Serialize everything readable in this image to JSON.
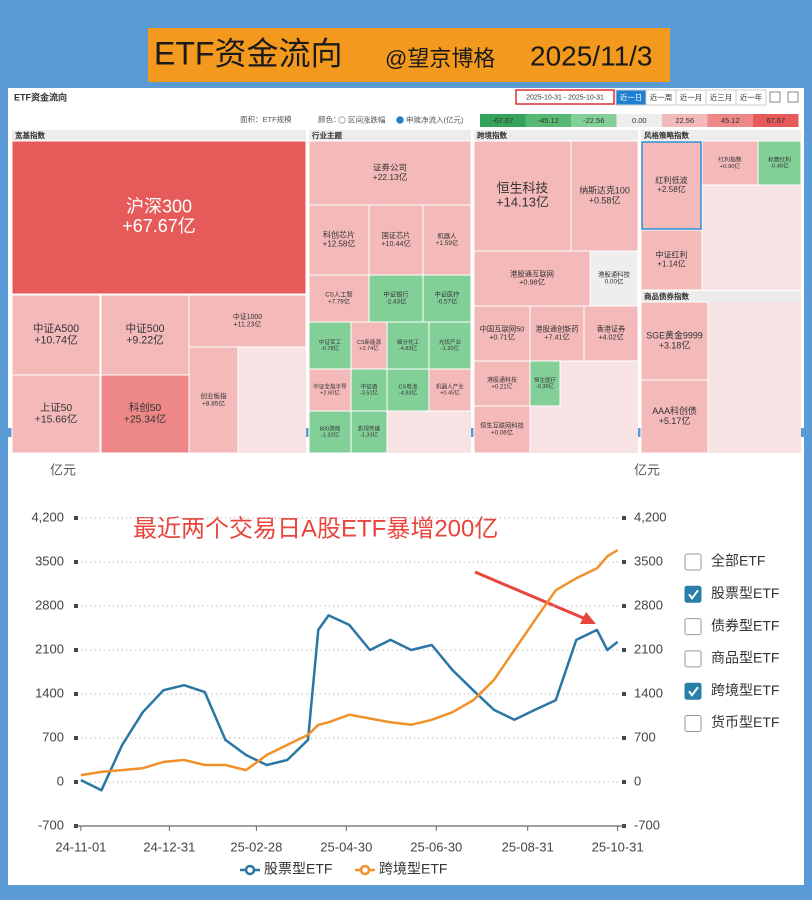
{
  "banner": {
    "title": "ETF资金流向",
    "author": "@望京博格",
    "date": "2025/11/3"
  },
  "chart_data": [
    {
      "type": "treemap",
      "title": "ETF资金流向",
      "date_range": "2025-10-31 - 2025-10-31",
      "periods": [
        {
          "label": "近一日",
          "active": true
        },
        {
          "label": "近一周",
          "active": false
        },
        {
          "label": "近一月",
          "active": false
        },
        {
          "label": "近三月",
          "active": false
        },
        {
          "label": "近一年",
          "active": false
        }
      ],
      "area_label": "面积：ETF规模",
      "color_label": "颜色：",
      "color_options": [
        {
          "label": "区间涨跌幅",
          "selected": false
        },
        {
          "label": "申赎净流入(亿元)",
          "selected": true
        }
      ],
      "color_scale": [
        -67.67,
        -45.12,
        -22.56,
        {
          "value": 0,
          "label": "0.00"
        },
        22.56,
        45.12,
        67.67
      ],
      "color_scale_colors": [
        "#35a35a",
        "#57b872",
        "#82d098",
        "#eeeeee",
        "#f4b9b9",
        "#ee8787",
        "#e65a5a"
      ],
      "groups": [
        {
          "name": "宽基指数",
          "categories": [
            "沪深300",
            "中证A500",
            "中证500",
            "中证1000",
            "上证50",
            "科创50",
            "创业板指"
          ],
          "values": [
            67.67,
            10.74,
            9.22,
            11.23,
            15.66,
            25.34,
            8.85
          ],
          "value_labels": [
            "+67.67亿",
            "+10.74亿",
            "+9.22亿",
            "+11.23亿",
            "+15.66亿",
            "+25.34亿",
            "+8.85亿"
          ]
        },
        {
          "name": "行业主题",
          "categories": [
            "证券公司",
            "科创芯片",
            "国证芯片",
            "机器人",
            "CS人工智",
            "中证银行",
            "中证医疗",
            "中证军工",
            "CS新能源",
            "细分化工",
            "光伏产业",
            "中证全指半导",
            "中证酒",
            "CS电池",
            "机器人产业",
            "800游戏",
            "影视传媒"
          ],
          "values": [
            22.13,
            12.58,
            10.44,
            1.59,
            7.79,
            -2.43,
            -0.57,
            -0.78,
            3.74,
            -4.83,
            -1.2,
            2.6,
            -3.51,
            -4.83,
            0.45,
            -1.32,
            -1.33
          ],
          "value_labels": [
            "+22.13亿",
            "+12.58亿",
            "+10.44亿",
            "+1.59亿",
            "+7.79亿",
            "-2.43亿",
            "-0.57亿",
            "-0.78亿",
            "+3.74亿",
            "-4.83亿",
            "-1.20亿",
            "+2.60亿",
            "-3.51亿",
            "-4.83亿",
            "+0.45亿",
            "-1.32亿",
            "-1.33亿"
          ]
        },
        {
          "name": "跨境指数",
          "categories": [
            "恒生科技",
            "纳斯达克100",
            "港股通互联网",
            "港股通科技",
            "中国互联网50",
            "港股通创新药",
            "香港证券",
            "港股通科技",
            "恒生医疗",
            "恒生互联网科技"
          ],
          "values": [
            14.13,
            0.58,
            0.98,
            0,
            0.71,
            7.41,
            4.02,
            0.21,
            -0.36,
            0.06
          ],
          "value_labels": [
            "+14.13亿",
            "+0.58亿",
            "+0.98亿",
            "0.00亿",
            "+0.71亿",
            "+7.41亿",
            "+4.02亿",
            "+0.21亿",
            "-0.36亿",
            "+0.06亿"
          ]
        },
        {
          "name": "风格策略指数",
          "categories": [
            "红利低波",
            "红利指数",
            "标普红利",
            "中证红利"
          ],
          "values": [
            2.58,
            0.9,
            -0.46,
            1.14
          ],
          "value_labels": [
            "+2.58亿",
            "+0.90亿",
            "-0.46亿",
            "+1.14亿"
          ]
        },
        {
          "name": "商品债券指数",
          "categories": [
            "SGE黄金9999",
            "AAA科创债"
          ],
          "values": [
            3.18,
            5.17
          ],
          "value_labels": [
            "+3.18亿",
            "+5.17亿"
          ]
        }
      ]
    },
    {
      "type": "line",
      "annotation": "最近两个交易日A股ETF暴增200亿",
      "y_label": "亿元",
      "y2_label": "亿元",
      "x": [
        "24-11-01",
        "24-11-15",
        "24-11-29",
        "24-12-13",
        "24-12-27",
        "25-01-10",
        "25-01-24",
        "25-02-07",
        "25-02-21",
        "25-03-07",
        "25-03-21",
        "25-04-04",
        "25-04-11",
        "25-04-18",
        "25-05-02",
        "25-05-16",
        "25-05-30",
        "25-06-13",
        "25-06-27",
        "25-07-11",
        "25-07-25",
        "25-08-08",
        "25-08-22",
        "25-09-05",
        "25-09-19",
        "25-10-03",
        "25-10-17",
        "25-10-24",
        "25-10-31"
      ],
      "series": [
        {
          "name": "股票型ETF",
          "color": "#2a77a4",
          "values": [
            30,
            -130,
            590,
            1110,
            1460,
            1540,
            1430,
            670,
            430,
            270,
            350,
            670,
            2420,
            2650,
            2500,
            2100,
            2260,
            2100,
            2180,
            1780,
            1460,
            1150,
            990,
            1150,
            1300,
            2260,
            2420,
            2100,
            2230
          ]
        },
        {
          "name": "跨境型ETF",
          "color": "#f0912a",
          "values": [
            110,
            160,
            190,
            220,
            320,
            350,
            270,
            270,
            190,
            430,
            590,
            750,
            910,
            950,
            1070,
            1010,
            950,
            910,
            990,
            1110,
            1300,
            1620,
            2100,
            2580,
            3050,
            3240,
            3400,
            3590,
            3690
          ]
        }
      ],
      "xlim": [
        "24-10-28",
        "25-11-05"
      ],
      "xticks": [
        "24-11-01",
        "24-12-31",
        "25-02-28",
        "25-04-30",
        "25-06-30",
        "25-08-31",
        "25-10-31"
      ],
      "ylim": [
        -700,
        4200
      ],
      "yticks": [
        -700,
        0,
        700,
        1400,
        2100,
        2800,
        3500,
        {
          "value": 4200,
          "label": "4,200"
        }
      ],
      "y2lim": [
        -700,
        4200
      ],
      "y2ticks": [
        -700,
        0,
        700,
        1400,
        2100,
        2800,
        3500,
        {
          "value": 4200,
          "label": "4,200"
        }
      ],
      "grid": true,
      "filter_options": [
        {
          "label": "全部ETF",
          "checked": false
        },
        {
          "label": "股票型ETF",
          "checked": true
        },
        {
          "label": "债券型ETF",
          "checked": false
        },
        {
          "label": "商品型ETF",
          "checked": false
        },
        {
          "label": "跨境型ETF",
          "checked": true
        },
        {
          "label": "货币型ETF",
          "checked": false
        }
      ]
    }
  ]
}
